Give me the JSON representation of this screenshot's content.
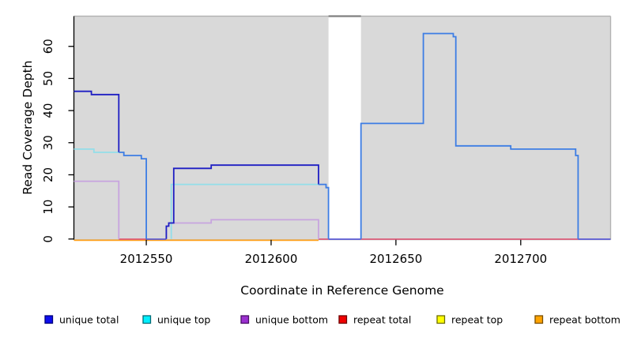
{
  "chart_data": {
    "type": "line",
    "step": true,
    "title": "",
    "xlabel": "Coordinate in Reference Genome",
    "ylabel": "Read Coverage Depth",
    "xlim": [
      2012521,
      2012736
    ],
    "ylim": [
      0,
      69.4
    ],
    "x_ticks": [
      {
        "value": 2012550,
        "label": "2012550"
      },
      {
        "value": 2012600,
        "label": "2012600"
      },
      {
        "value": 2012650,
        "label": "2012650"
      },
      {
        "value": 2012700,
        "label": "2012700"
      }
    ],
    "y_ticks": [
      {
        "value": 0,
        "label": "0"
      },
      {
        "value": 10,
        "label": "10"
      },
      {
        "value": 20,
        "label": "20"
      },
      {
        "value": 30,
        "label": "30"
      },
      {
        "value": 40,
        "label": "40"
      },
      {
        "value": 50,
        "label": "50"
      },
      {
        "value": 60,
        "label": "60"
      }
    ],
    "no_coverage_gap": [
      2012623,
      2012636
    ],
    "panel_bg": "#D9D9D9",
    "gap_bg": "#FFFFFF",
    "border_color": "#B3B3B3",
    "gap_top_color": "#808080",
    "axis_color": "#000000",
    "palette": {
      "navy": "#1E1EC3",
      "blue": "#3D7DE4",
      "cyan": "#93DEE9",
      "lavender": "#C7A4DF",
      "orange": "#FFA018",
      "red": "#DD5C7A",
      "slate": "#5B5BD6"
    },
    "series": [
      {
        "name": "unique-top-left",
        "color": "cyan",
        "end": 2012539,
        "steps": [
          [
            2012521,
            28
          ],
          [
            2012529,
            27
          ]
        ]
      },
      {
        "name": "unique-top-mid",
        "color": "cyan",
        "end": 2012619,
        "steps": [
          [
            2012560,
            0
          ],
          [
            2012560,
            17
          ]
        ]
      },
      {
        "name": "unique-bottom-left",
        "color": "lavender",
        "end": 2012539,
        "steps": [
          [
            2012521,
            18
          ],
          [
            2012539,
            0
          ]
        ]
      },
      {
        "name": "unique-bottom-mid",
        "color": "lavender",
        "end": 2012619,
        "steps": [
          [
            2012558,
            0
          ],
          [
            2012558,
            4
          ],
          [
            2012559,
            5
          ],
          [
            2012576,
            6
          ],
          [
            2012619,
            0
          ]
        ]
      },
      {
        "name": "unique-total-left",
        "color": "navy",
        "end": 2012539,
        "steps": [
          [
            2012521,
            46
          ],
          [
            2012528,
            45
          ],
          [
            2012539,
            27
          ]
        ]
      },
      {
        "name": "unique-total-overlap-left",
        "color": "blue",
        "end": 2012550,
        "steps": [
          [
            2012539,
            27
          ],
          [
            2012541,
            26
          ],
          [
            2012548,
            25
          ],
          [
            2012550,
            0
          ]
        ]
      },
      {
        "name": "unique-total-mid",
        "color": "navy",
        "end": 2012619,
        "steps": [
          [
            2012558,
            0
          ],
          [
            2012558,
            4
          ],
          [
            2012559,
            5
          ],
          [
            2012561,
            22
          ],
          [
            2012576,
            23
          ],
          [
            2012619,
            17
          ]
        ]
      },
      {
        "name": "unique-total-overlap-drop",
        "color": "blue",
        "end": 2012623,
        "steps": [
          [
            2012619,
            17
          ],
          [
            2012622,
            16
          ],
          [
            2012623,
            0
          ]
        ]
      },
      {
        "name": "unique-total-right-block",
        "color": "blue",
        "end": 2012723,
        "steps": [
          [
            2012636,
            0
          ],
          [
            2012636,
            36
          ],
          [
            2012661,
            64
          ],
          [
            2012673,
            63
          ],
          [
            2012674,
            29
          ],
          [
            2012696,
            28
          ],
          [
            2012722,
            26
          ],
          [
            2012723,
            0
          ]
        ]
      }
    ],
    "zero_segments": [
      {
        "color": "orange",
        "from": 2012521,
        "to": 2012619,
        "dy": 1.6
      },
      {
        "color": "red",
        "from": 2012539,
        "to": 2012550,
        "dy": 0.2
      },
      {
        "color": "slate",
        "from": 2012550,
        "to": 2012558,
        "dy": 0.2
      },
      {
        "color": "red",
        "from": 2012619,
        "to": 2012623,
        "dy": 0.2
      },
      {
        "color": "slate",
        "from": 2012623,
        "to": 2012636,
        "dy": 0.2
      },
      {
        "color": "red",
        "from": 2012636,
        "to": 2012723,
        "dy": 0.2
      },
      {
        "color": "slate",
        "from": 2012723,
        "to": 2012736,
        "dy": 0.2
      }
    ],
    "legend": [
      {
        "label": "unique total",
        "fill": "#0D0DEE",
        "border": "#00007A"
      },
      {
        "label": "unique top",
        "fill": "#00F0FF",
        "border": "#006B76"
      },
      {
        "label": "unique bottom",
        "fill": "#9B30D0",
        "border": "#4B0E66"
      },
      {
        "label": "repeat total",
        "fill": "#F00000",
        "border": "#6E0000"
      },
      {
        "label": "repeat top",
        "fill": "#FFFF00",
        "border": "#6E6E00"
      },
      {
        "label": "repeat bottom",
        "fill": "#FFA400",
        "border": "#7A4E00"
      }
    ]
  }
}
